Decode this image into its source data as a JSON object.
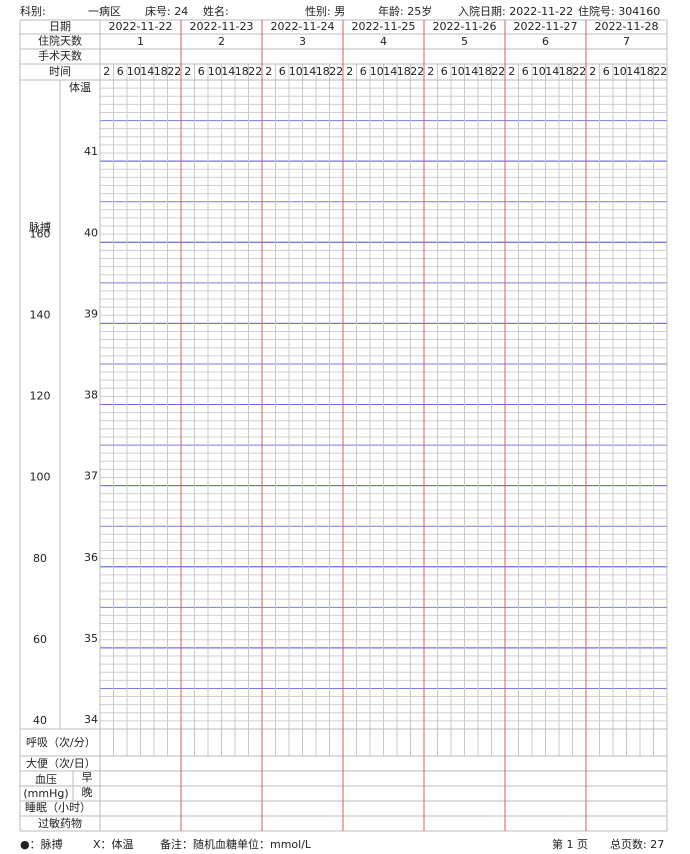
{
  "header": {
    "fields": [
      "科别:",
      "一病区",
      "床号: 24",
      "姓名:",
      "性别: 男",
      "年龄: 25岁",
      "入院日期: 2022-11-22",
      "住院号: 304160"
    ]
  },
  "table": {
    "row_labels": [
      "日期",
      "住院天数",
      "手术天数",
      "时间"
    ],
    "dates": [
      "2022-11-22",
      "2022-11-23",
      "2022-11-24",
      "2022-11-25",
      "2022-11-26",
      "2022-11-27",
      "2022-11-28"
    ],
    "days": [
      1,
      2,
      3,
      4,
      5,
      6,
      7
    ],
    "times": [
      2,
      6,
      10,
      14,
      18,
      22
    ]
  },
  "chart": {
    "pulse_label": "脉搏",
    "temp_label": "体温",
    "pulse_ticks": [
      40,
      60,
      80,
      100,
      120,
      140,
      160
    ],
    "temp_ticks": [
      34,
      35,
      36,
      37,
      38,
      39,
      40,
      41
    ],
    "temp_lim": [
      34,
      42
    ],
    "pulse_lim": [
      40,
      200
    ]
  },
  "bottom_rows": {
    "respiration": "呼吸（次/分）",
    "stool": "大便（次/日）",
    "bp": "血压",
    "bp_unit": "(mmHg)",
    "morning": "早",
    "evening": "晚",
    "sleep": "睡眠（小时）",
    "allergy": "过敏药物"
  },
  "legend": {
    "pulse": "●：脉搏",
    "temp": "X：体温",
    "note": "备注：随机血糖单位：mmol/L"
  },
  "footer": {
    "page": "第 1 页",
    "total": "总页数: 27"
  }
}
